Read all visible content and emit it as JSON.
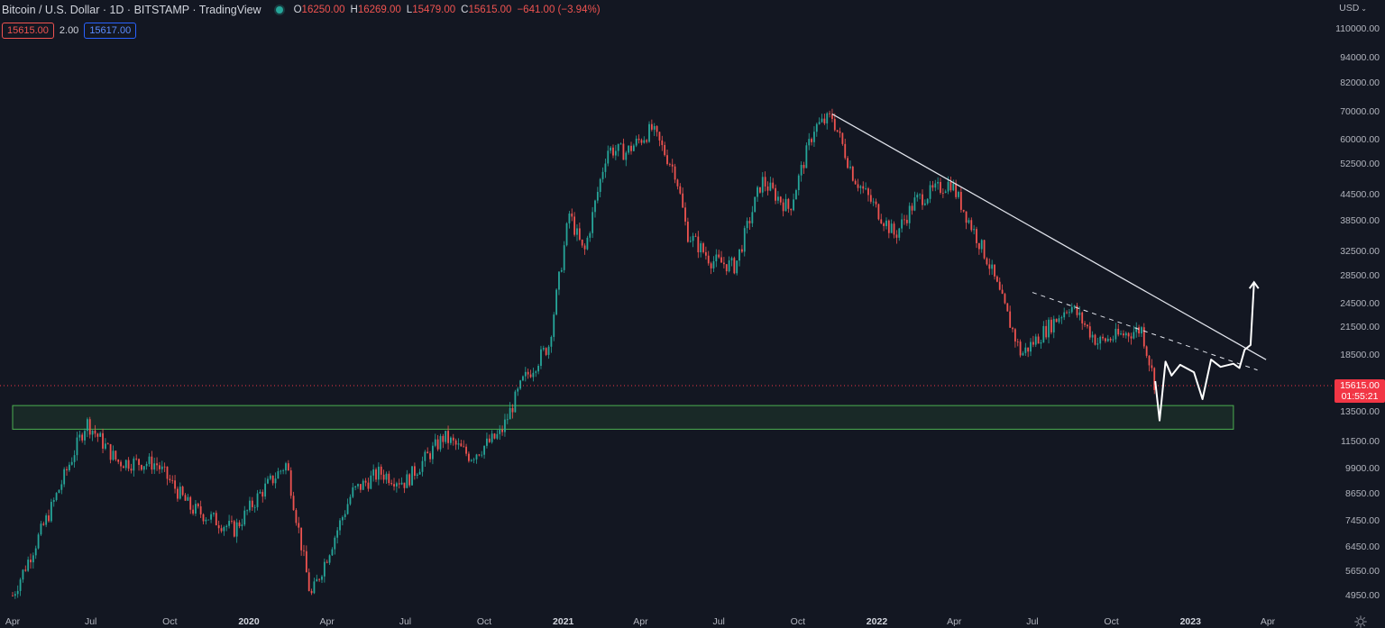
{
  "header": {
    "symbol_title": "Bitcoin / U.S. Dollar · 1D · BITSTAMP · TradingView",
    "ohlc": [
      {
        "key": "O",
        "value": "16250.00"
      },
      {
        "key": "H",
        "value": "16269.00"
      },
      {
        "key": "L",
        "value": "15479.00"
      },
      {
        "key": "C",
        "value": "15615.00"
      }
    ],
    "change": "−641.00 (−3.94%)",
    "sell_price": "15615.00",
    "spread": "2.00",
    "buy_price": "15617.00"
  },
  "price_axis": {
    "currency": "USD",
    "last_price": "15615.00",
    "countdown": "01:55:21",
    "labels": [
      "110000.00",
      "94000.00",
      "82000.00",
      "70000.00",
      "60000.00",
      "52500.00",
      "44500.00",
      "38500.00",
      "32500.00",
      "28500.00",
      "24500.00",
      "21500.00",
      "18500.00",
      "13500.00",
      "11500.00",
      "9900.00",
      "8650.00",
      "7450.00",
      "6450.00",
      "5650.00",
      "4950.00"
    ]
  },
  "time_axis": {
    "labels": [
      {
        "text": "Apr",
        "year": false
      },
      {
        "text": "Jul",
        "year": false
      },
      {
        "text": "Oct",
        "year": false
      },
      {
        "text": "2020",
        "year": true
      },
      {
        "text": "Apr",
        "year": false
      },
      {
        "text": "Jul",
        "year": false
      },
      {
        "text": "Oct",
        "year": false
      },
      {
        "text": "2021",
        "year": true
      },
      {
        "text": "Apr",
        "year": false
      },
      {
        "text": "Jul",
        "year": false
      },
      {
        "text": "Oct",
        "year": false
      },
      {
        "text": "2022",
        "year": true
      },
      {
        "text": "Apr",
        "year": false
      },
      {
        "text": "Jul",
        "year": false
      },
      {
        "text": "Oct",
        "year": false
      },
      {
        "text": "2023",
        "year": true
      },
      {
        "text": "Apr",
        "year": false
      }
    ]
  },
  "chart_data": {
    "type": "candlestick",
    "title": "Bitcoin / U.S. Dollar · 1D · BITSTAMP · TradingView",
    "y_scale": "log",
    "ylim": [
      4600,
      120000
    ],
    "x_range": [
      "2019-04-01",
      "2023-04-15"
    ],
    "last_price": 15615,
    "series": [
      {
        "name": "BTCUSD",
        "approx_closes": [
          [
            "2019-04-01",
            4950
          ],
          [
            "2019-05-15",
            7900
          ],
          [
            "2019-06-26",
            12800
          ],
          [
            "2019-08-01",
            10300
          ],
          [
            "2019-09-15",
            10200
          ],
          [
            "2019-10-25",
            8000
          ],
          [
            "2019-12-15",
            7100
          ],
          [
            "2020-01-15",
            8700
          ],
          [
            "2020-02-14",
            10200
          ],
          [
            "2020-03-13",
            4900
          ],
          [
            "2020-04-30",
            8700
          ],
          [
            "2020-06-01",
            9700
          ],
          [
            "2020-07-01",
            9200
          ],
          [
            "2020-08-15",
            11800
          ],
          [
            "2020-09-15",
            10600
          ],
          [
            "2020-10-20",
            12000
          ],
          [
            "2020-11-15",
            16000
          ],
          [
            "2020-12-15",
            19500
          ],
          [
            "2021-01-08",
            40000
          ],
          [
            "2021-01-25",
            32000
          ],
          [
            "2021-02-21",
            57000
          ],
          [
            "2021-03-15",
            56000
          ],
          [
            "2021-04-14",
            63500
          ],
          [
            "2021-05-12",
            50000
          ],
          [
            "2021-05-25",
            36000
          ],
          [
            "2021-06-22",
            31000
          ],
          [
            "2021-07-20",
            30000
          ],
          [
            "2021-08-20",
            48000
          ],
          [
            "2021-09-21",
            41000
          ],
          [
            "2021-10-20",
            64000
          ],
          [
            "2021-11-10",
            68000
          ],
          [
            "2021-12-05",
            49000
          ],
          [
            "2022-01-22",
            35500
          ],
          [
            "2022-02-15",
            43000
          ],
          [
            "2022-03-28",
            47500
          ],
          [
            "2022-05-10",
            31000
          ],
          [
            "2022-06-18",
            18500
          ],
          [
            "2022-08-14",
            24300
          ],
          [
            "2022-09-15",
            19800
          ],
          [
            "2022-11-05",
            21300
          ],
          [
            "2022-11-21",
            15615
          ]
        ]
      }
    ],
    "annotations": [
      {
        "type": "support_zone",
        "y_low": 12300,
        "y_high": 14000,
        "x_start": "2019-04-01",
        "x_end": "2023-02-20"
      },
      {
        "type": "trendline",
        "style": "solid",
        "from": [
          "2021-11-10",
          69000
        ],
        "to": [
          "2023-03-30",
          18000
        ]
      },
      {
        "type": "trendline",
        "style": "dashed",
        "from": [
          "2022-07-01",
          26000
        ],
        "to": [
          "2023-03-20",
          17000
        ]
      },
      {
        "type": "price_line",
        "y": 15615,
        "style": "dotted"
      },
      {
        "type": "projection_path",
        "points": [
          [
            "2022-11-21",
            16000
          ],
          [
            "2022-11-26",
            12900
          ],
          [
            "2022-12-03",
            17800
          ],
          [
            "2022-12-10",
            16500
          ],
          [
            "2022-12-20",
            17500
          ],
          [
            "2023-01-05",
            16800
          ],
          [
            "2023-01-15",
            14500
          ],
          [
            "2023-01-25",
            18000
          ],
          [
            "2023-02-05",
            17300
          ],
          [
            "2023-02-20",
            17600
          ],
          [
            "2023-02-27",
            17200
          ],
          [
            "2023-03-05",
            19000
          ],
          [
            "2023-03-12",
            19500
          ],
          [
            "2023-03-16",
            27500
          ]
        ]
      }
    ]
  }
}
